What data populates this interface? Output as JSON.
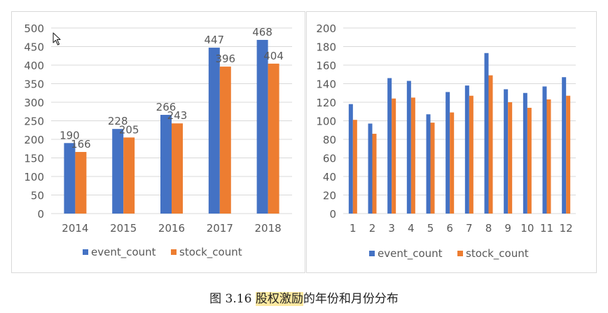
{
  "colors": {
    "event": "#4472c4",
    "stock": "#ed7d31",
    "grid": "#d9d9d9",
    "text": "#595959"
  },
  "chart_data": [
    {
      "type": "bar",
      "categories": [
        "2014",
        "2015",
        "2016",
        "2017",
        "2018"
      ],
      "series": [
        {
          "name": "event_count",
          "values": [
            190,
            228,
            266,
            447,
            468
          ]
        },
        {
          "name": "stock_count",
          "values": [
            166,
            205,
            243,
            396,
            404
          ]
        }
      ],
      "ylim": [
        0,
        500
      ],
      "yticks": [
        0,
        50,
        100,
        150,
        200,
        250,
        300,
        350,
        400,
        450,
        500
      ],
      "grid": true,
      "data_labels": true,
      "legend": "bottom"
    },
    {
      "type": "bar",
      "categories": [
        "1",
        "2",
        "3",
        "4",
        "5",
        "6",
        "7",
        "8",
        "9",
        "10",
        "11",
        "12"
      ],
      "series": [
        {
          "name": "event_count",
          "values": [
            118,
            97,
            146,
            143,
            107,
            131,
            138,
            173,
            134,
            130,
            137,
            147
          ]
        },
        {
          "name": "stock_count",
          "values": [
            101,
            86,
            124,
            125,
            98,
            109,
            127,
            149,
            120,
            114,
            123,
            127
          ]
        }
      ],
      "ylim": [
        0,
        200
      ],
      "yticks": [
        0,
        20,
        40,
        60,
        80,
        100,
        120,
        140,
        160,
        180,
        200
      ],
      "grid": true,
      "data_labels": false,
      "legend": "bottom"
    }
  ],
  "caption": {
    "prefix": "图 3.16 ",
    "highlight": "股权激励",
    "suffix": "的年份和月份分布"
  }
}
